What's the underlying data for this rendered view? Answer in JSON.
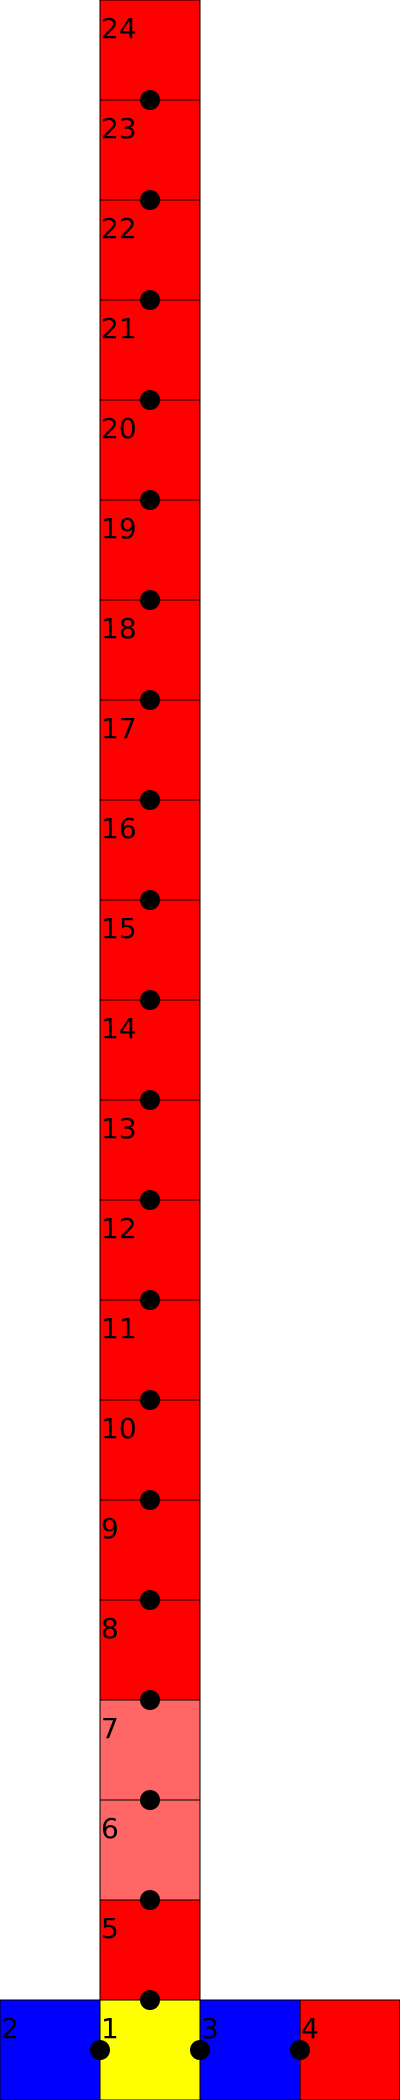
{
  "cells": [
    {
      "label": "24",
      "color": "#ff0000"
    },
    {
      "label": "23",
      "color": "#ff0000"
    },
    {
      "label": "22",
      "color": "#ff0000"
    },
    {
      "label": "21",
      "color": "#ff0000"
    },
    {
      "label": "20",
      "color": "#ff0000"
    },
    {
      "label": "19",
      "color": "#ff0000"
    },
    {
      "label": "18",
      "color": "#ff0000"
    },
    {
      "label": "17",
      "color": "#ff0000"
    },
    {
      "label": "16",
      "color": "#ff0000"
    },
    {
      "label": "15",
      "color": "#ff0000"
    },
    {
      "label": "14",
      "color": "#ff0000"
    },
    {
      "label": "13",
      "color": "#ff0000"
    },
    {
      "label": "12",
      "color": "#ff0000"
    },
    {
      "label": "11",
      "color": "#ff0000"
    },
    {
      "label": "10",
      "color": "#ff0000"
    },
    {
      "label": "9",
      "color": "#ff0000"
    },
    {
      "label": "8",
      "color": "#ff0000"
    },
    {
      "label": "7",
      "color": "#ff6666"
    },
    {
      "label": "6",
      "color": "#ff6666"
    },
    {
      "label": "5",
      "color": "#ff0000"
    }
  ],
  "bottom_row": [
    {
      "label": "2",
      "color": "#0000ff"
    },
    {
      "label": "1",
      "color": "#ffff00"
    },
    {
      "label": "3",
      "color": "#0000ff"
    },
    {
      "label": "4",
      "color": "#ff0000"
    }
  ],
  "dot_color": "#000000"
}
